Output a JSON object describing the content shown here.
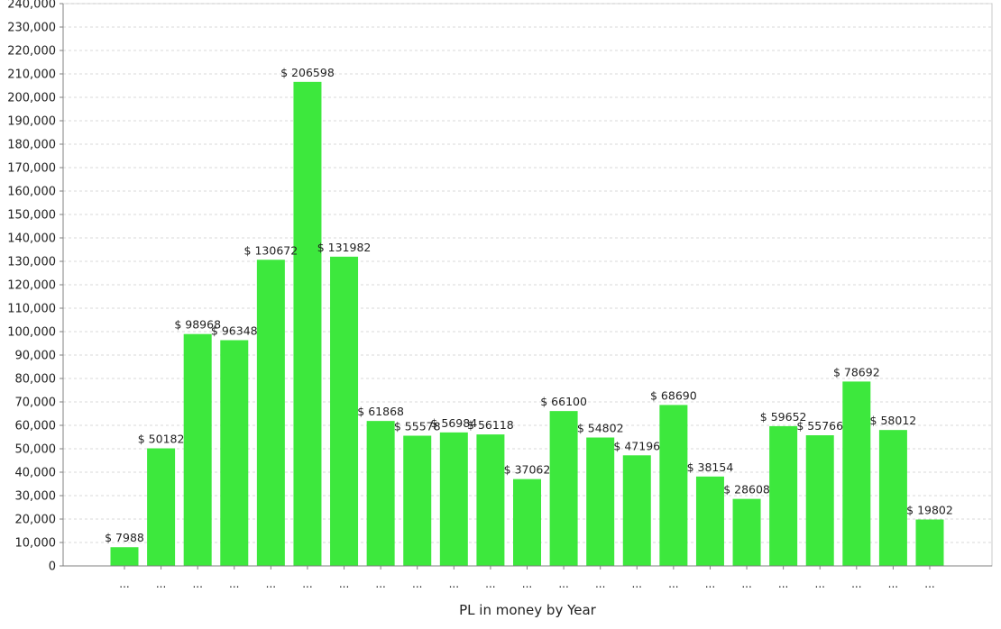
{
  "chart_data": {
    "type": "bar",
    "title": "",
    "xlabel": "PL in money by Year",
    "ylabel": "",
    "ylim": [
      0,
      240000
    ],
    "y_tick_step": 10000,
    "grid": true,
    "legend": "none",
    "bar_color": "#3de83d",
    "value_prefix": "$ ",
    "categories": [
      "...",
      "...",
      "...",
      "...",
      "...",
      "...",
      "...",
      "...",
      "...",
      "...",
      "...",
      "...",
      "...",
      "...",
      "...",
      "...",
      "...",
      "...",
      "...",
      "...",
      "...",
      "...",
      "..."
    ],
    "values": [
      7988,
      50182,
      98968,
      96348,
      130672,
      206598,
      131982,
      61868,
      55578,
      56984,
      56118,
      37062,
      66100,
      54802,
      47196,
      68690,
      38154,
      28608,
      59652,
      55766,
      78692,
      58012,
      19802
    ]
  }
}
